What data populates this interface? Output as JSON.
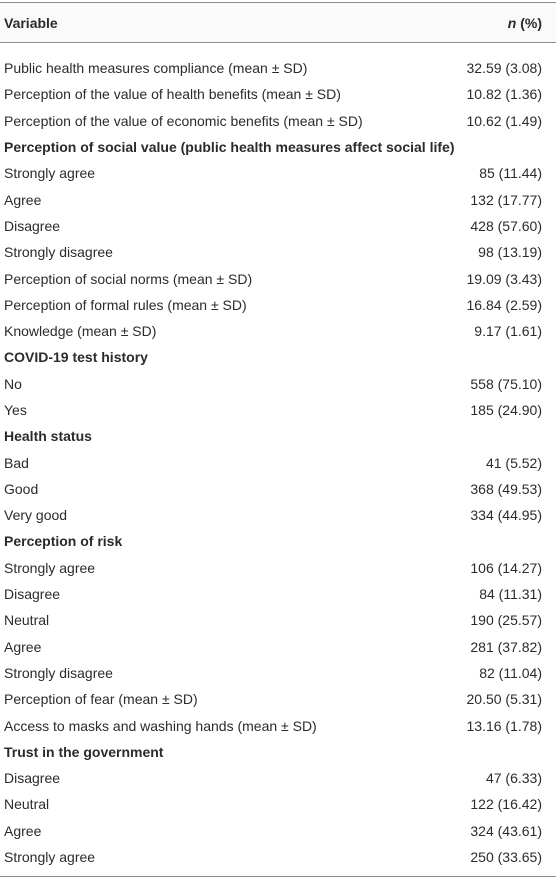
{
  "table": {
    "header": {
      "variable": "Variable",
      "n": "n",
      "percent": "(%)"
    },
    "rows": [
      {
        "label": "Public health measures compliance (mean ± SD)",
        "value": "32.59 (3.08)"
      },
      {
        "label": "Perception of the value of health benefits (mean ± SD)",
        "value": "10.82 (1.36)"
      },
      {
        "label": "Perception of the value of economic benefits (mean ± SD)",
        "value": "10.62 (1.49)"
      },
      {
        "section": "Perception of social value (public health measures affect social life)"
      },
      {
        "label": "Strongly agree",
        "value": "85 (11.44)"
      },
      {
        "label": "Agree",
        "value": "132 (17.77)"
      },
      {
        "label": "Disagree",
        "value": "428 (57.60)"
      },
      {
        "label": "Strongly disagree",
        "value": "98 (13.19)"
      },
      {
        "label": "Perception of social norms (mean ± SD)",
        "value": "19.09 (3.43)"
      },
      {
        "label": "Perception of formal rules (mean ± SD)",
        "value": "16.84 (2.59)"
      },
      {
        "label": "Knowledge (mean ± SD)",
        "value": "9.17 (1.61)"
      },
      {
        "section": "COVID-19 test history"
      },
      {
        "label": "No",
        "value": "558 (75.10)"
      },
      {
        "label": "Yes",
        "value": "185 (24.90)"
      },
      {
        "section": "Health status"
      },
      {
        "label": "Bad",
        "value": "41 (5.52)"
      },
      {
        "label": "Good",
        "value": "368 (49.53)"
      },
      {
        "label": "Very good",
        "value": "334 (44.95)"
      },
      {
        "section": "Perception of risk"
      },
      {
        "label": "Strongly agree",
        "value": "106 (14.27)"
      },
      {
        "label": "Disagree",
        "value": "84 (11.31)"
      },
      {
        "label": "Neutral",
        "value": "190 (25.57)"
      },
      {
        "label": "Agree",
        "value": "281 (37.82)"
      },
      {
        "label": "Strongly disagree",
        "value": "82 (11.04)"
      },
      {
        "label": "Perception of fear (mean ± SD)",
        "value": "20.50 (5.31)"
      },
      {
        "label": "Access to masks and washing hands (mean ± SD)",
        "value": "13.16 (1.78)"
      },
      {
        "section": "Trust in the government"
      },
      {
        "label": "Disagree",
        "value": "47 (6.33)"
      },
      {
        "label": "Neutral",
        "value": "122 (16.42)"
      },
      {
        "label": "Agree",
        "value": "324 (43.61)"
      },
      {
        "label": "Strongly agree",
        "value": "250 (33.65)"
      }
    ]
  }
}
